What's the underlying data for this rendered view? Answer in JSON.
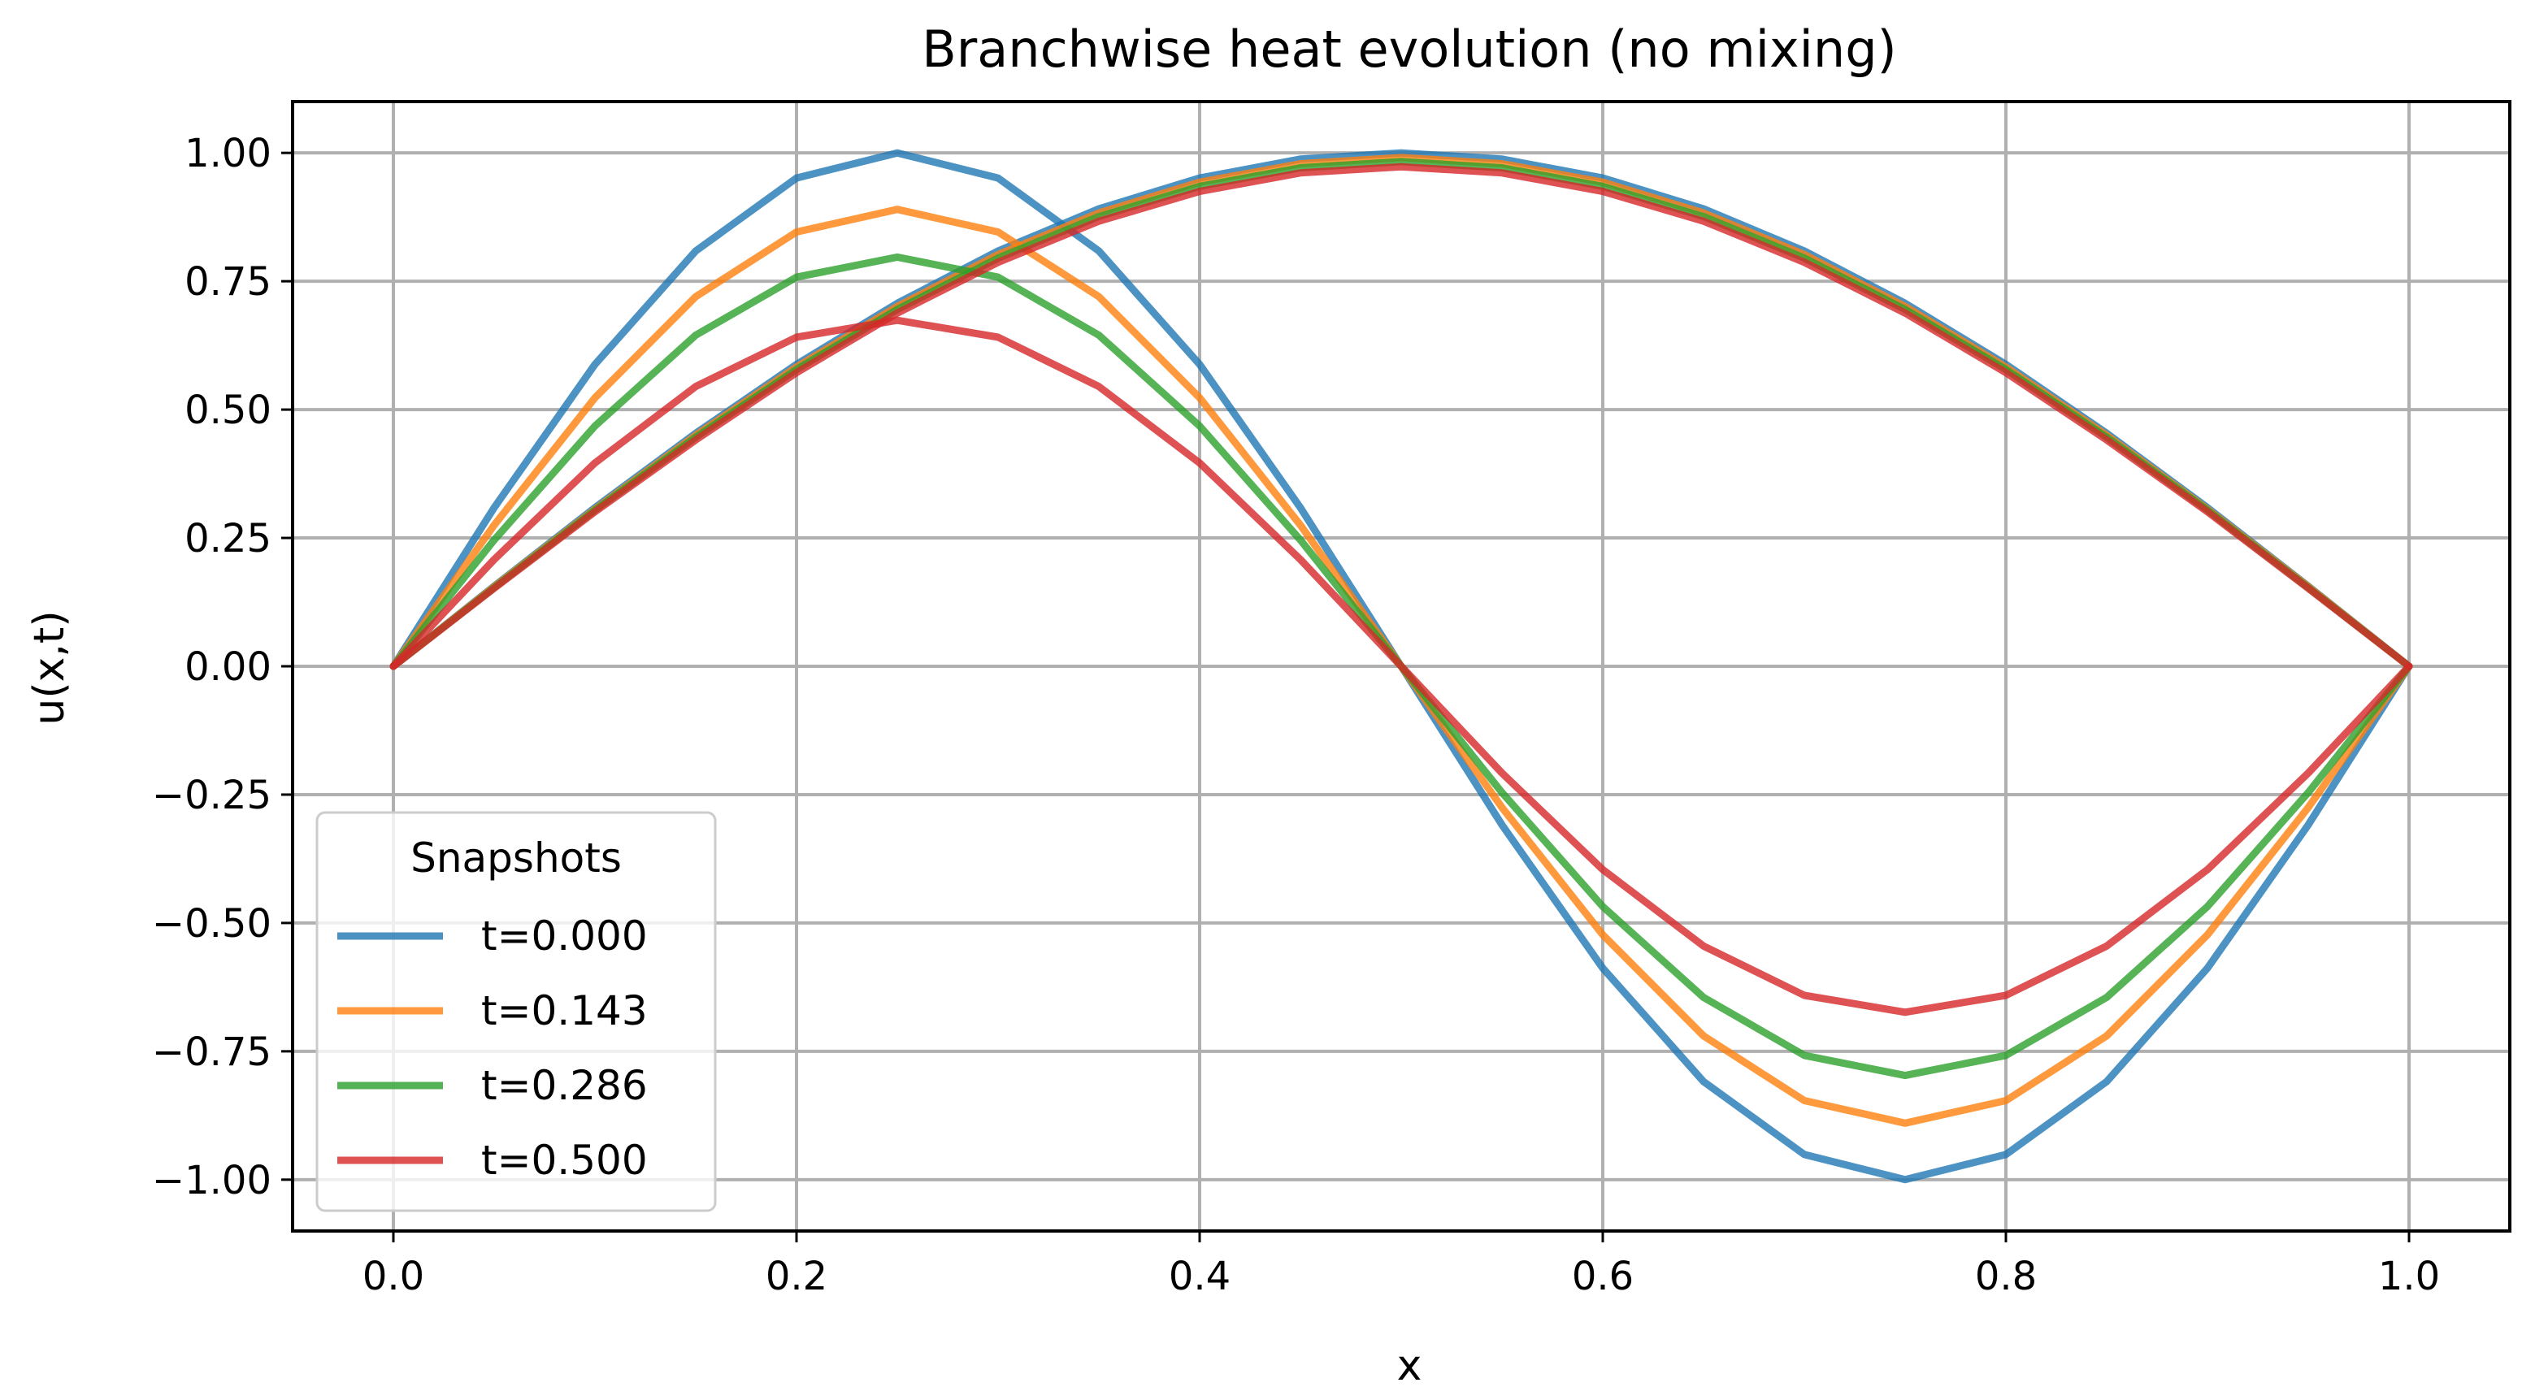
{
  "chart_data": {
    "type": "line",
    "title": "Branchwise heat evolution (no mixing)",
    "xlabel": "x",
    "ylabel": "u(x,t)",
    "xlim": [
      -0.05,
      1.05
    ],
    "ylim": [
      -1.1,
      1.1
    ],
    "grid": true,
    "xticks": [
      0.0,
      0.2,
      0.4,
      0.6,
      0.8,
      1.0
    ],
    "xtick_labels": [
      "0.0",
      "0.2",
      "0.4",
      "0.6",
      "0.8",
      "1.0"
    ],
    "yticks": [
      1.0,
      0.75,
      0.5,
      0.25,
      0.0,
      -0.25,
      -0.5,
      -0.75,
      -1.0
    ],
    "ytick_labels": [
      "1.00",
      "0.75",
      "0.50",
      "0.25",
      "0.00",
      "−0.25",
      "−0.50",
      "−0.75",
      "−1.00"
    ],
    "legend": {
      "title": "Snapshots",
      "placement": "lower-left"
    },
    "x": [
      0.0,
      0.05,
      0.1,
      0.15,
      0.2,
      0.25,
      0.3,
      0.35,
      0.4,
      0.45,
      0.5,
      0.55,
      0.6,
      0.65,
      0.7,
      0.75,
      0.8,
      0.85,
      0.9,
      0.95,
      1.0
    ],
    "series": [
      {
        "name": "t=0.000",
        "color": "#1f77b4",
        "branches": [
          [
            0.0,
            0.309,
            0.588,
            0.809,
            0.951,
            1.0,
            0.951,
            0.809,
            0.588,
            0.309,
            0.0,
            -0.309,
            -0.588,
            -0.809,
            -0.951,
            -1.0,
            -0.951,
            -0.809,
            -0.588,
            -0.309,
            0.0
          ],
          [
            0.0,
            0.156,
            0.309,
            0.454,
            0.588,
            0.707,
            0.809,
            0.891,
            0.951,
            0.988,
            1.0,
            0.988,
            0.951,
            0.891,
            0.809,
            0.707,
            0.588,
            0.454,
            0.309,
            0.156,
            0.0
          ]
        ]
      },
      {
        "name": "t=0.143",
        "color": "#ff7f0e",
        "branches": [
          [
            0.0,
            0.275,
            0.523,
            0.72,
            0.846,
            0.89,
            0.846,
            0.72,
            0.523,
            0.275,
            0.0,
            -0.275,
            -0.523,
            -0.72,
            -0.846,
            -0.89,
            -0.846,
            -0.72,
            -0.523,
            -0.275,
            0.0
          ],
          [
            0.0,
            0.155,
            0.306,
            0.45,
            0.583,
            0.701,
            0.802,
            0.883,
            0.943,
            0.979,
            0.991,
            0.979,
            0.943,
            0.883,
            0.802,
            0.701,
            0.583,
            0.45,
            0.306,
            0.155,
            0.0
          ]
        ]
      },
      {
        "name": "t=0.286",
        "color": "#2ca02c",
        "branches": [
          [
            0.0,
            0.246,
            0.468,
            0.645,
            0.758,
            0.797,
            0.758,
            0.645,
            0.468,
            0.246,
            0.0,
            -0.246,
            -0.468,
            -0.645,
            -0.758,
            -0.797,
            -0.758,
            -0.645,
            -0.468,
            -0.246,
            0.0
          ],
          [
            0.0,
            0.153,
            0.304,
            0.446,
            0.578,
            0.695,
            0.795,
            0.876,
            0.935,
            0.971,
            0.983,
            0.971,
            0.935,
            0.876,
            0.795,
            0.695,
            0.578,
            0.446,
            0.304,
            0.153,
            0.0
          ]
        ]
      },
      {
        "name": "t=0.500",
        "color": "#d62728",
        "branches": [
          [
            0.0,
            0.208,
            0.396,
            0.545,
            0.641,
            0.674,
            0.641,
            0.545,
            0.396,
            0.208,
            0.0,
            -0.208,
            -0.396,
            -0.545,
            -0.641,
            -0.674,
            -0.641,
            -0.545,
            -0.396,
            -0.208,
            0.0
          ],
          [
            0.0,
            0.152,
            0.301,
            0.441,
            0.572,
            0.688,
            0.787,
            0.867,
            0.925,
            0.961,
            0.973,
            0.961,
            0.925,
            0.867,
            0.787,
            0.688,
            0.572,
            0.441,
            0.301,
            0.152,
            0.0
          ]
        ]
      }
    ]
  }
}
